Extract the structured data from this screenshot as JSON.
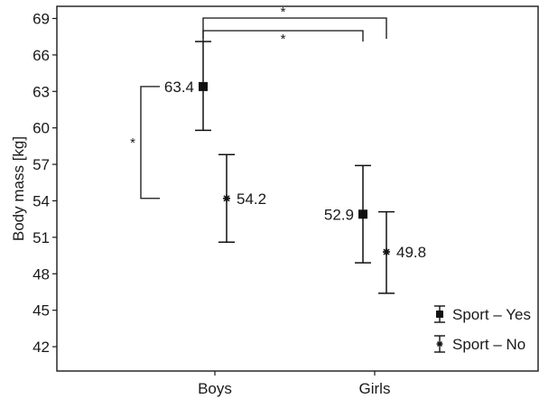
{
  "chart_data": {
    "type": "scatter",
    "ylabel": "Body mass [kg]",
    "xlabel": "",
    "ylim": [
      40,
      70
    ],
    "yticks": [
      42,
      45,
      48,
      51,
      54,
      57,
      60,
      63,
      66,
      69
    ],
    "categories": [
      "Boys",
      "Girls"
    ],
    "series": [
      {
        "name": "Sport – Yes",
        "marker": "square",
        "values": [
          63.4,
          52.9
        ],
        "lower": [
          59.8,
          48.9
        ],
        "upper": [
          67.1,
          56.9
        ],
        "labels": [
          "63.4",
          "52.9"
        ]
      },
      {
        "name": "Sport – No",
        "marker": "asterisk",
        "values": [
          54.2,
          49.8
        ],
        "lower": [
          50.6,
          46.4
        ],
        "upper": [
          57.8,
          53.1
        ],
        "labels": [
          "54.2",
          "49.8"
        ]
      }
    ],
    "significance": [
      {
        "label": "*",
        "between": "Boys Sport – Yes vs Boys Sport – No"
      },
      {
        "label": "*",
        "between": "Boys Sport – Yes vs Girls Sport – Yes"
      },
      {
        "label": "*",
        "between": "Boys Sport – Yes vs Girls Sport – No"
      }
    ],
    "legend_position": "bottom-right",
    "colors": {
      "axis": "#1a1a1a",
      "marks": "#111111"
    }
  }
}
